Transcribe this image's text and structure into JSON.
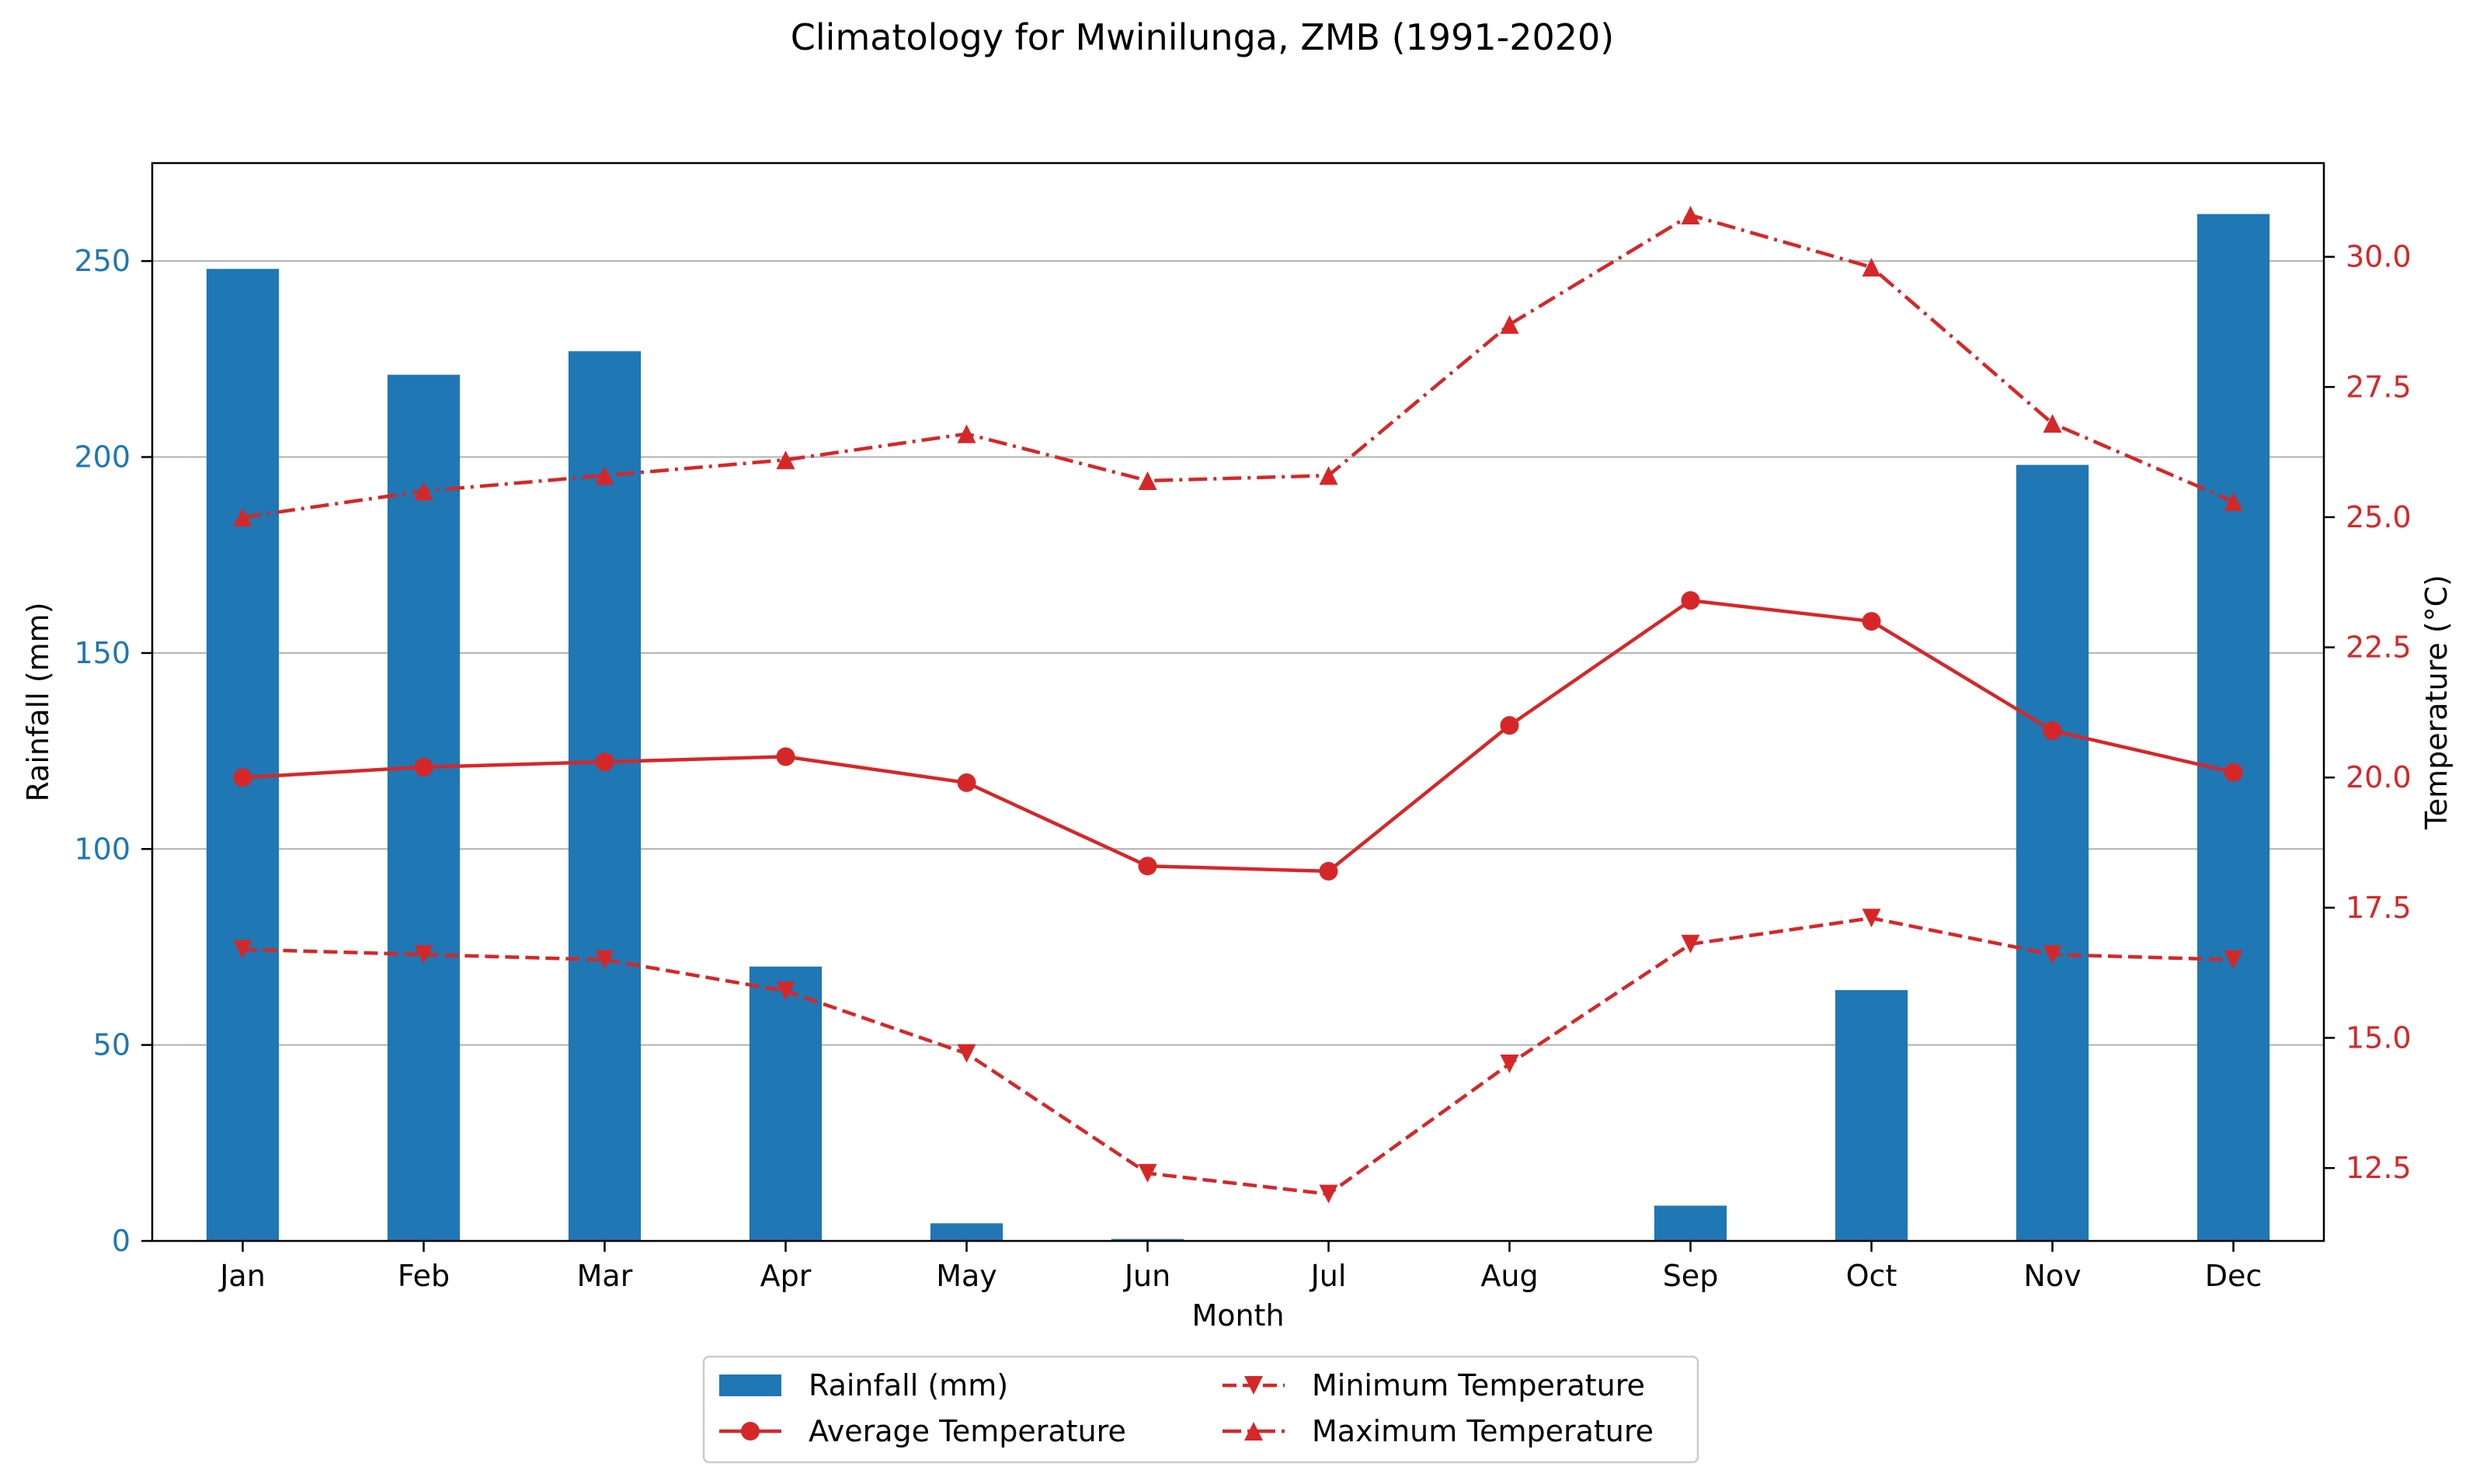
{
  "chart_data": {
    "type": "bar",
    "title": "Climatology for Mwinilunga, ZMB (1991-2020)",
    "xlabel": "Month",
    "ylabel": "Rainfall (mm)",
    "y2label": "Temperature (°C)",
    "categories": [
      "Jan",
      "Feb",
      "Mar",
      "Apr",
      "May",
      "Jun",
      "Jul",
      "Aug",
      "Sep",
      "Oct",
      "Nov",
      "Dec"
    ],
    "ylim": [
      0,
      275
    ],
    "y2lim": [
      11.1,
      31.8
    ],
    "yticks": [
      0,
      50,
      100,
      150,
      200,
      250
    ],
    "y2ticks": [
      "12.5",
      "15.0",
      "17.5",
      "20.0",
      "22.5",
      "25.0",
      "27.5",
      "30.0"
    ],
    "grid": "horizontal",
    "legend_position": "bottom-center",
    "series": [
      {
        "name": "Rainfall (mm)",
        "kind": "bar",
        "axis": "left",
        "color": "#1f77b4",
        "values": [
          248,
          221,
          227,
          70,
          4.5,
          0.5,
          0,
          0,
          9,
          64,
          198,
          262
        ]
      },
      {
        "name": "Average Temperature",
        "kind": "line",
        "axis": "right",
        "color": "#d62728",
        "linestyle": "solid",
        "marker": "circle",
        "values": [
          20.0,
          20.2,
          20.3,
          20.4,
          19.9,
          18.3,
          18.2,
          21.0,
          23.4,
          23.0,
          20.9,
          20.1
        ]
      },
      {
        "name": "Minimum Temperature",
        "kind": "line",
        "axis": "right",
        "color": "#d62728",
        "linestyle": "dashed",
        "marker": "triangle-down",
        "values": [
          16.7,
          16.6,
          16.5,
          15.9,
          14.7,
          12.4,
          12.0,
          14.5,
          16.8,
          17.3,
          16.6,
          16.5
        ]
      },
      {
        "name": "Maximum Temperature",
        "kind": "line",
        "axis": "right",
        "color": "#d62728",
        "linestyle": "dashdot",
        "marker": "triangle-up",
        "values": [
          25.0,
          25.5,
          25.8,
          26.1,
          26.6,
          25.7,
          25.8,
          28.7,
          30.8,
          29.8,
          26.8,
          25.3
        ]
      }
    ]
  }
}
